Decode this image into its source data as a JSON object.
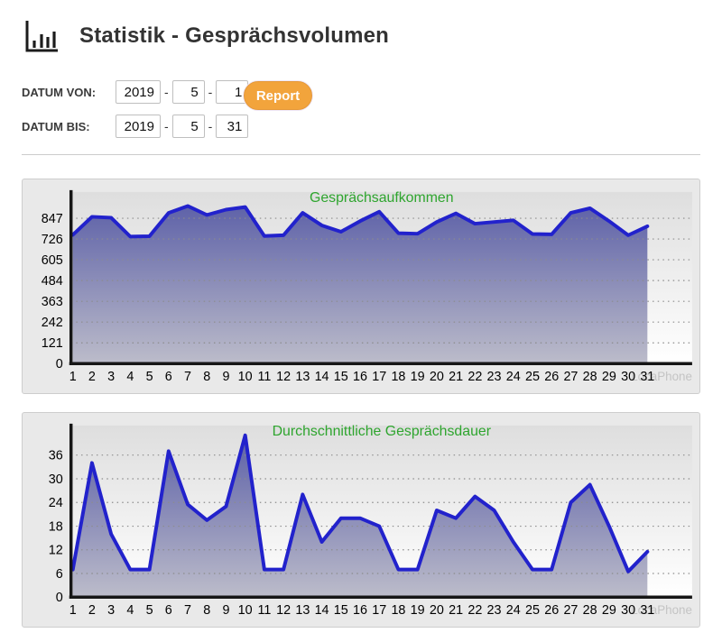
{
  "header": {
    "title": "Statistik - Gesprächsvolumen"
  },
  "filters": {
    "separator": "-",
    "from": {
      "label": "DATUM VON:",
      "year": "2019",
      "month": "5",
      "day": "1"
    },
    "to": {
      "label": "DATUM BIS:",
      "year": "2019",
      "month": "5",
      "day": "31"
    },
    "report_label": "Report"
  },
  "watermark": "LocaPhone",
  "colors": {
    "accent_orange": "#f2a43c",
    "title_green": "#2ea52e",
    "line_blue": "#2222cc",
    "area_top": "#565aa5",
    "area_bottom": "#bcbcca",
    "plot_bg_top": "#dedede",
    "plot_bg_bottom": "#ffffff",
    "grid": "#8c8c8c",
    "axis": "#161616",
    "watermark_gray": "#c4c4c4",
    "tick_text": "#000000"
  },
  "chart_data": [
    {
      "type": "area",
      "title": "Gesprächsaufkommen",
      "categories": [
        "1",
        "2",
        "3",
        "4",
        "5",
        "6",
        "7",
        "8",
        "9",
        "10",
        "11",
        "12",
        "13",
        "14",
        "15",
        "16",
        "17",
        "18",
        "19",
        "20",
        "21",
        "22",
        "23",
        "24",
        "25",
        "26",
        "27",
        "28",
        "29",
        "30",
        "31"
      ],
      "values": [
        750,
        855,
        850,
        740,
        742,
        878,
        918,
        866,
        897,
        912,
        743,
        748,
        878,
        805,
        768,
        830,
        885,
        760,
        757,
        825,
        875,
        815,
        825,
        835,
        755,
        753,
        878,
        905,
        830,
        748,
        800
      ],
      "y_ticks": [
        847,
        726,
        605,
        484,
        363,
        242,
        121,
        0
      ],
      "ylim": [
        0,
        1000
      ],
      "xlabel": "",
      "ylabel": "",
      "grid": "dotted-horizontal",
      "legend": "none"
    },
    {
      "type": "area",
      "title": "Durchschnittliche Gesprächsdauer",
      "categories": [
        "1",
        "2",
        "3",
        "4",
        "5",
        "6",
        "7",
        "8",
        "9",
        "10",
        "11",
        "12",
        "13",
        "14",
        "15",
        "16",
        "17",
        "18",
        "19",
        "20",
        "21",
        "22",
        "23",
        "24",
        "25",
        "26",
        "27",
        "28",
        "29",
        "30",
        "31"
      ],
      "values": [
        7,
        34,
        16,
        7,
        7,
        37,
        23.5,
        19.5,
        23,
        41,
        7,
        7,
        26,
        14,
        20,
        20,
        18,
        7,
        7,
        22,
        20,
        25.5,
        22,
        14,
        7,
        7,
        24,
        28.5,
        18,
        6.5,
        11.5
      ],
      "y_ticks": [
        36,
        30,
        24,
        18,
        12,
        6,
        0
      ],
      "ylim": [
        0,
        43.5
      ],
      "xlabel": "",
      "ylabel": "",
      "grid": "dotted-horizontal",
      "legend": "none"
    }
  ]
}
